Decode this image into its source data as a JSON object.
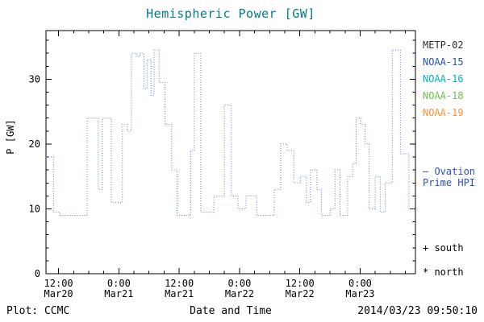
{
  "colors": {
    "title": "#007d7d",
    "line": "#5b7fd4",
    "axis": "#000000",
    "background": "#ffffff"
  },
  "chart_data": {
    "type": "line",
    "title": "Hemispheric Power [GW]",
    "xlabel": "Date and Time",
    "ylabel": "P [GW]",
    "series_name": "Ovation Prime HPI",
    "line_style": "dotted-step",
    "ylim": [
      0,
      37.5
    ],
    "y_ticks": [
      0,
      10,
      20,
      30
    ],
    "y_minor_step": 2,
    "xlim_hours_from_mar20": [
      9.5,
      83
    ],
    "x_minor_step_hours": 3,
    "x_ticks": [
      {
        "hour": 12,
        "time": "12:00",
        "date": "Mar20"
      },
      {
        "hour": 24,
        "time": "0:00",
        "date": "Mar21"
      },
      {
        "hour": 36,
        "time": "12:00",
        "date": "Mar21"
      },
      {
        "hour": 48,
        "time": "0:00",
        "date": "Mar22"
      },
      {
        "hour": 60,
        "time": "12:00",
        "date": "Mar22"
      },
      {
        "hour": 72,
        "time": "0:00",
        "date": "Mar23"
      }
    ],
    "step_points_hour_gw": [
      [
        9.5,
        18
      ],
      [
        11,
        9.5
      ],
      [
        12.3,
        9
      ],
      [
        17.7,
        24
      ],
      [
        19.9,
        13
      ],
      [
        20.7,
        24
      ],
      [
        22.5,
        11
      ],
      [
        24.7,
        23
      ],
      [
        25.7,
        22
      ],
      [
        26.5,
        34
      ],
      [
        27.5,
        33.5
      ],
      [
        28.2,
        34
      ],
      [
        29.0,
        28.5
      ],
      [
        29.6,
        33
      ],
      [
        30.4,
        27.5
      ],
      [
        31.0,
        34.5
      ],
      [
        32.0,
        29.5
      ],
      [
        33.2,
        23
      ],
      [
        34.5,
        16
      ],
      [
        35.6,
        9
      ],
      [
        38.3,
        19
      ],
      [
        39.0,
        34
      ],
      [
        40.3,
        9.5
      ],
      [
        42.9,
        12
      ],
      [
        45.0,
        26
      ],
      [
        46.4,
        12
      ],
      [
        47.7,
        10
      ],
      [
        49.3,
        12
      ],
      [
        51.4,
        9
      ],
      [
        54.9,
        13
      ],
      [
        56.2,
        20
      ],
      [
        57.5,
        19
      ],
      [
        58.8,
        14
      ],
      [
        60.1,
        15
      ],
      [
        61.3,
        11
      ],
      [
        62.1,
        16
      ],
      [
        63.4,
        13
      ],
      [
        64.3,
        9
      ],
      [
        66.0,
        10
      ],
      [
        67.0,
        16
      ],
      [
        68.0,
        9
      ],
      [
        69.5,
        15
      ],
      [
        70.5,
        17
      ],
      [
        71.2,
        24
      ],
      [
        72.2,
        23
      ],
      [
        73.0,
        20
      ],
      [
        73.8,
        10
      ],
      [
        75.0,
        15
      ],
      [
        76.0,
        9.5
      ],
      [
        77.0,
        14
      ],
      [
        78.4,
        34.5
      ],
      [
        80.0,
        18.5
      ],
      [
        81.7,
        10
      ],
      [
        83.0,
        10
      ]
    ]
  },
  "legend": {
    "satellites": [
      {
        "label": "METP-02",
        "color": "#303030"
      },
      {
        "label": "NOAA-15",
        "color": "#2a52be"
      },
      {
        "label": "NOAA-16",
        "color": "#00b0c8"
      },
      {
        "label": "NOAA-18",
        "color": "#6cc24a"
      },
      {
        "label": "NOAA-19",
        "color": "#ff9333"
      }
    ],
    "model_line1": "– Ovation",
    "model_line2": "Prime HPI",
    "model_color": "#2a52be",
    "south_marker": "+ south",
    "north_marker": "* north"
  },
  "footer": {
    "left": "Plot: CCMC",
    "right": "2014/03/23 09:50:10"
  }
}
